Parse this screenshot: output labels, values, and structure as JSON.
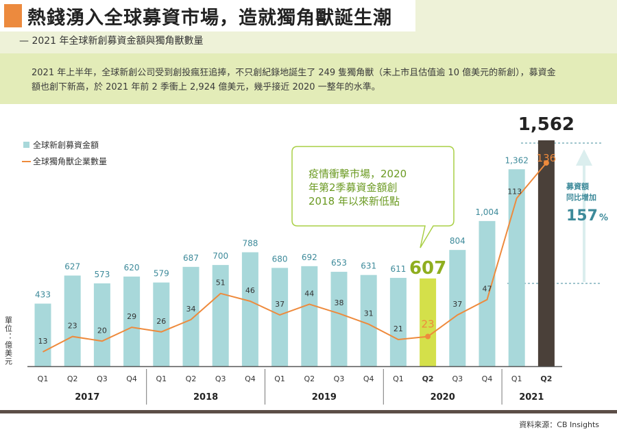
{
  "header": {
    "title": "熱錢湧入全球募資市場，造就獨角獸誕生潮",
    "subtitle": "— 2021 年全球新創募資金額與獨角獸數量"
  },
  "intro": {
    "text": "2021 年上半年，全球新創公司受到創投瘋狂追捧，不只創紀錄地誕生了 249 隻獨角獸（未上市且估值逾 10 億美元的新創），募資金額也創下新高，於 2021 年前 2 季衝上 2,924 億美元，幾乎接近 2020 一整年的水準。"
  },
  "source": "資料來源：CB Insights",
  "colors": {
    "bar": "#a8d8da",
    "highlight_low": "#d4e04a",
    "highlight_high": "#4a4039",
    "line": "#ee8a3c",
    "accent": "#3d8a9a",
    "callout": "#a9cf45"
  },
  "chart_data": {
    "type": "bar+line",
    "categories": [
      "Q1",
      "Q2",
      "Q3",
      "Q4",
      "Q1",
      "Q2",
      "Q3",
      "Q4",
      "Q1",
      "Q2",
      "Q3",
      "Q4",
      "Q1",
      "Q2",
      "Q3",
      "Q4",
      "Q1",
      "Q2"
    ],
    "years": [
      {
        "label": "2017",
        "start": 0,
        "end": 3
      },
      {
        "label": "2018",
        "start": 4,
        "end": 7
      },
      {
        "label": "2019",
        "start": 8,
        "end": 11
      },
      {
        "label": "2020",
        "start": 12,
        "end": 15
      },
      {
        "label": "2021",
        "start": 16,
        "end": 17
      }
    ],
    "series": [
      {
        "name": "全球新創募資金額",
        "type": "bar",
        "values": [
          433,
          627,
          573,
          620,
          579,
          687,
          700,
          788,
          680,
          692,
          653,
          631,
          611,
          607,
          804,
          1004,
          1362,
          1562
        ],
        "labels": [
          "433",
          "627",
          "573",
          "620",
          "579",
          "687",
          "700",
          "788",
          "680",
          "692",
          "653",
          "631",
          "611",
          "607",
          "804",
          "1,004",
          "1,362",
          "1,562"
        ]
      },
      {
        "name": "全球獨角獸企業數量",
        "type": "line",
        "values": [
          13,
          23,
          20,
          29,
          26,
          34,
          51,
          46,
          37,
          44,
          38,
          31,
          21,
          23,
          37,
          47,
          113,
          136
        ],
        "labels": [
          "13",
          "23",
          "20",
          "29",
          "26",
          "34",
          "51",
          "46",
          "37",
          "44",
          "38",
          "31",
          "21",
          "23",
          "37",
          "47",
          "113",
          "136"
        ]
      }
    ],
    "highlight_bold_ticks": [
      13,
      17
    ],
    "ylabel": "單位：億美元",
    "ylim": [
      0,
      1700
    ],
    "line_ylim": [
      0,
      160
    ],
    "grid": false,
    "legend": "top-left",
    "annotations": {
      "callout": [
        "疫情衝擊市場，2020",
        "年第2季募資金額創",
        "2018 年以來新低點"
      ],
      "growth_label": [
        "募資額",
        "同比增加"
      ],
      "growth_value": "157",
      "growth_unit": "%"
    }
  }
}
